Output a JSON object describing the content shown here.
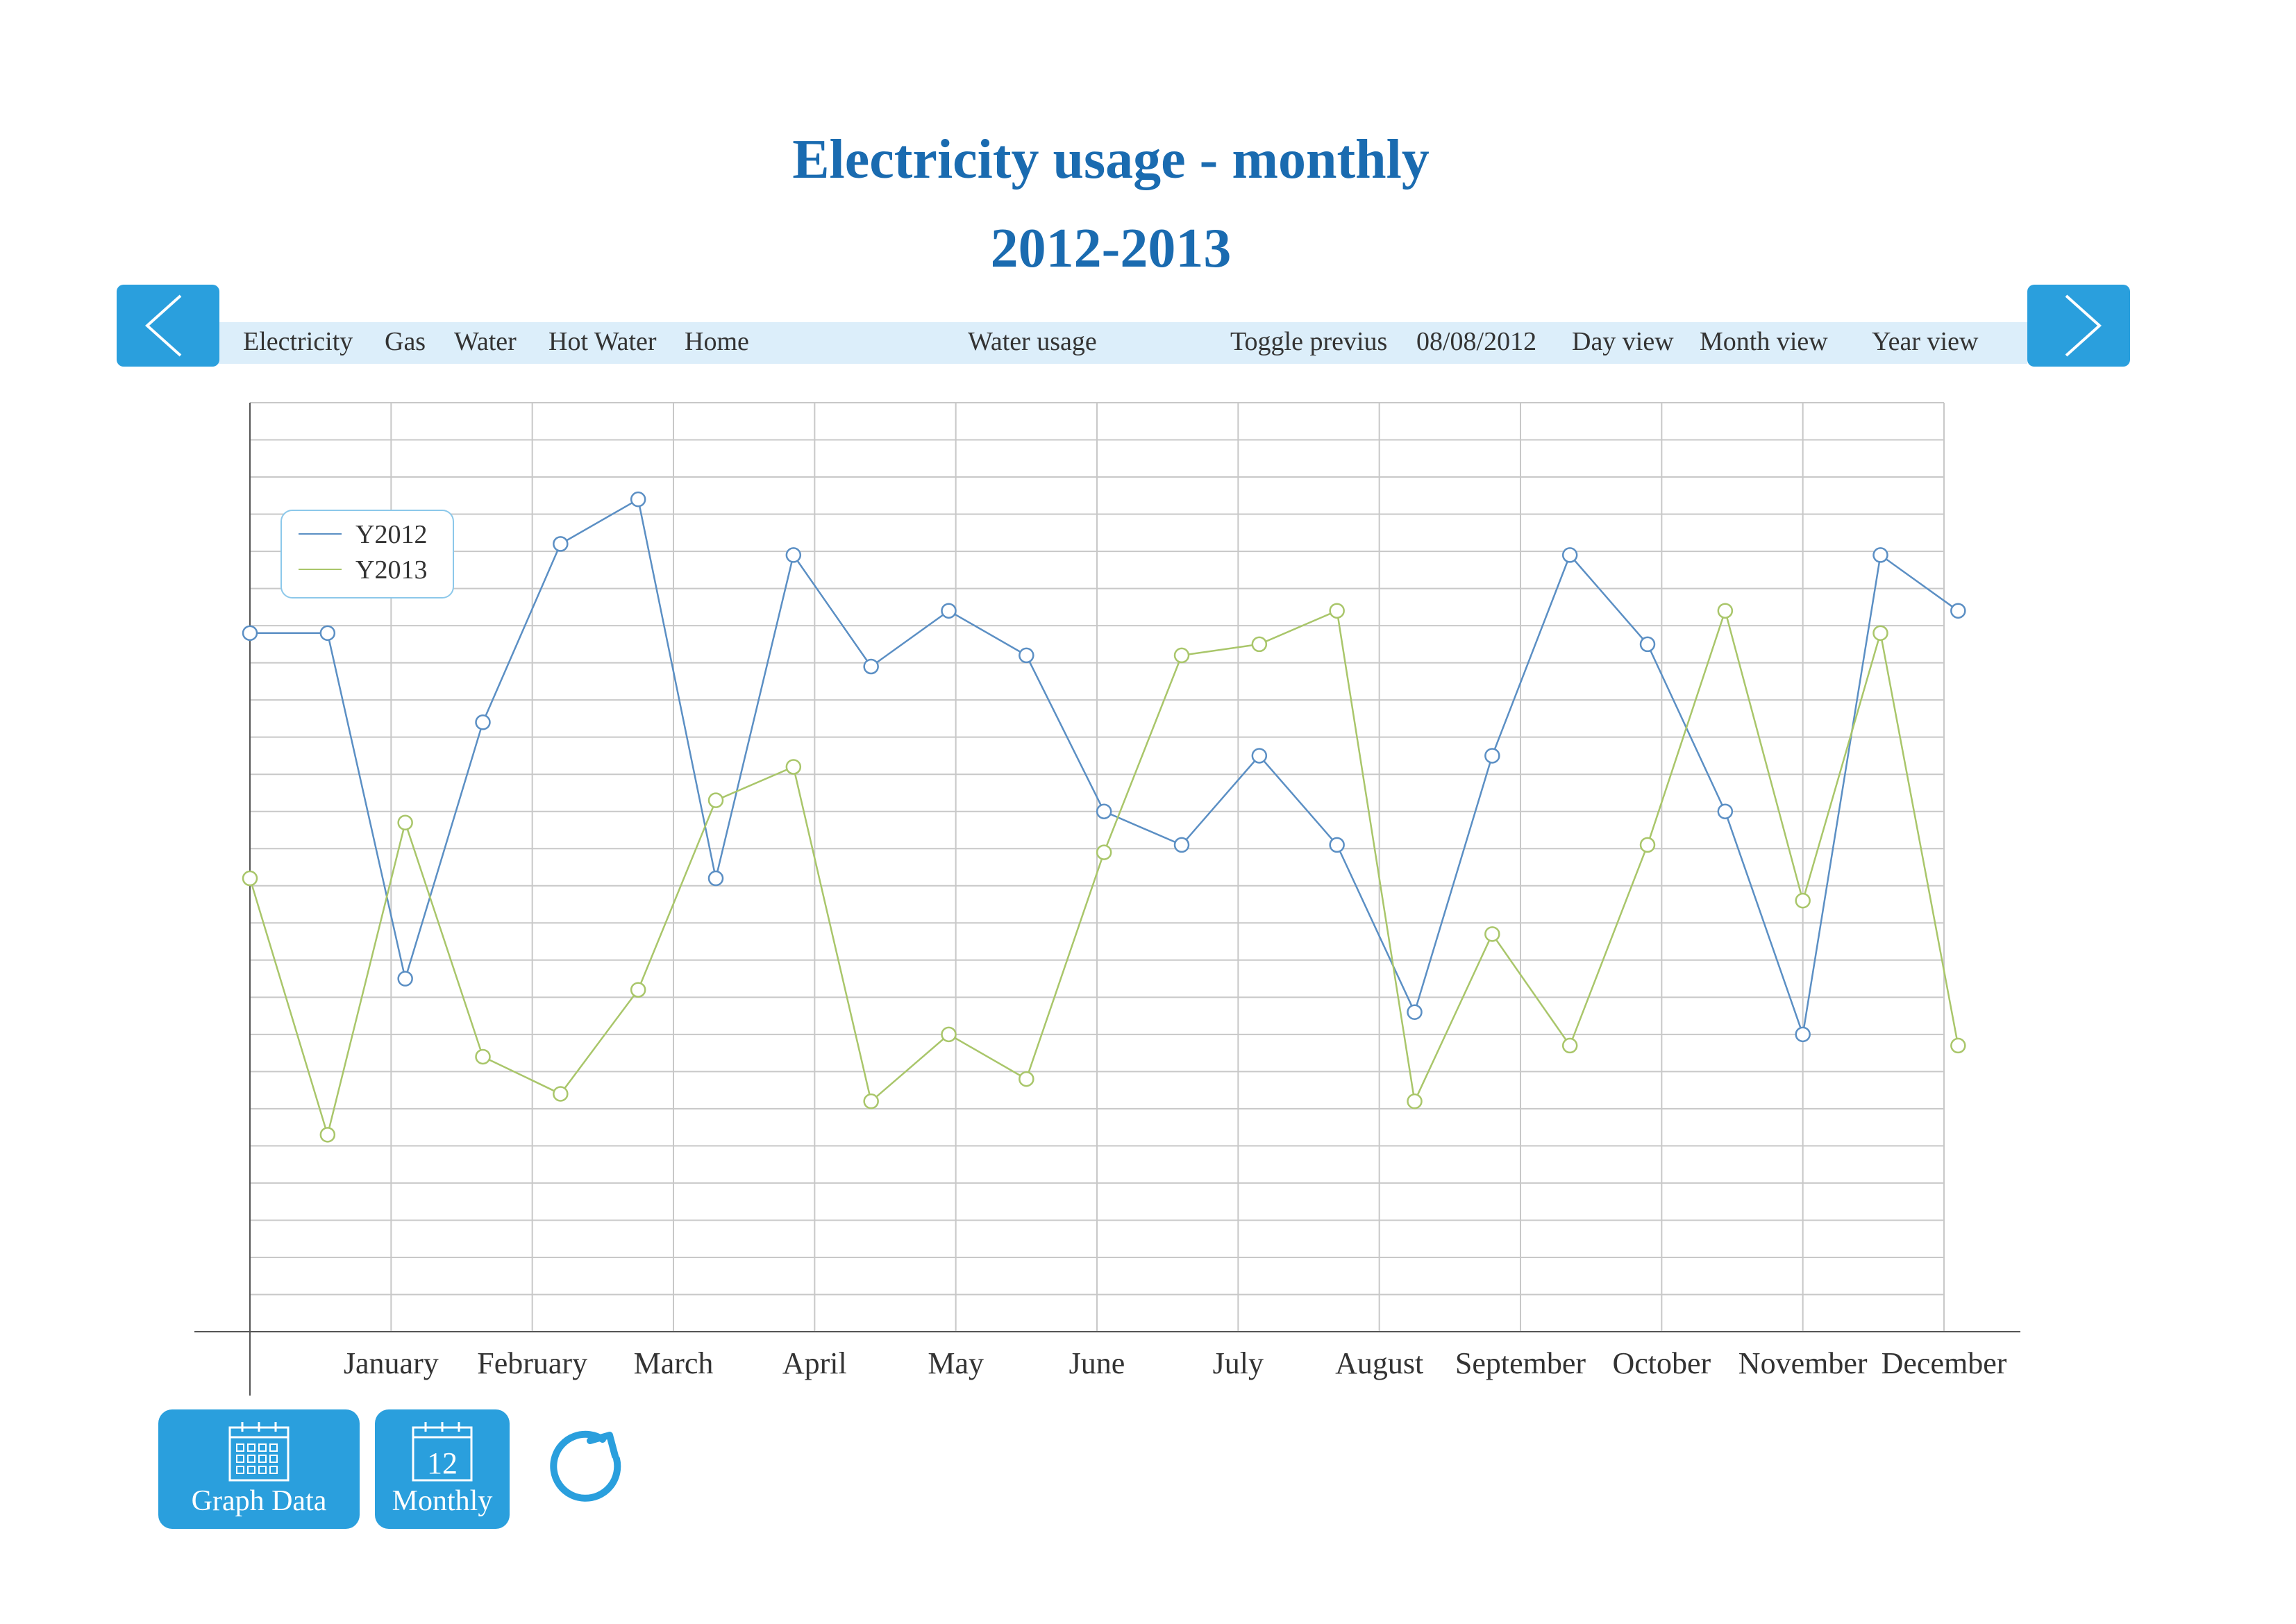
{
  "header": {
    "title": "Electricity usage - monthly",
    "subtitle": "2012-2013"
  },
  "nav": {
    "items": {
      "electricity": "Electricity",
      "gas": "Gas",
      "water": "Water",
      "hot_water": "Hot Water",
      "home": "Home",
      "water_usage": "Water usage",
      "toggle": "Toggle previus",
      "date": "08/08/2012",
      "day_view": "Day view",
      "month_view": "Month view",
      "year_view": "Year view"
    },
    "prev_icon": "chevron-left-icon",
    "next_icon": "chevron-right-icon"
  },
  "footer": {
    "graph_data_label": "Graph  Data",
    "graph_data_icon": "calendar-grid-icon",
    "monthly_label": "Monthly",
    "monthly_icon": "calendar-icon",
    "monthly_icon_number": "12",
    "refresh_icon": "refresh-icon"
  },
  "colors": {
    "accent": "#2a9fdd",
    "title": "#1a6bb0",
    "nav_bar": "#dceefa",
    "series_2012": "#5b8fc4",
    "series_2013": "#a9c66a",
    "grid": "#c8c8c8"
  },
  "chart_data": {
    "type": "line",
    "title": "Electricity usage - monthly",
    "subtitle": "2012-2013",
    "xlabel": "",
    "ylabel": "",
    "categories": [
      "January",
      "February",
      "March",
      "April",
      "May",
      "June",
      "July",
      "August",
      "September",
      "October",
      "November",
      "December"
    ],
    "x": [
      0,
      0.55,
      1.1,
      1.65,
      2.2,
      2.75,
      3.3,
      3.85,
      4.4,
      4.95,
      5.5,
      6.05,
      6.6,
      7.15,
      7.7,
      8.25,
      8.8,
      9.35,
      9.9,
      10.45,
      11,
      11.55,
      12.1
    ],
    "ylim": [
      0,
      25
    ],
    "grid": true,
    "legend_position": "top-left",
    "series": [
      {
        "name": "Y2012",
        "color": "#5b8fc4",
        "values": [
          18.8,
          18.8,
          9.5,
          16.4,
          21.2,
          22.4,
          12.2,
          20.9,
          17.9,
          19.4,
          18.2,
          14.0,
          13.1,
          15.5,
          13.1,
          8.6,
          15.5,
          20.9,
          18.5,
          14.0,
          8.0,
          20.9,
          19.4
        ]
      },
      {
        "name": "Y2013",
        "color": "#a9c66a",
        "values": [
          12.2,
          5.3,
          13.7,
          7.4,
          6.4,
          9.2,
          14.3,
          15.2,
          6.2,
          8.0,
          6.8,
          12.9,
          18.2,
          18.5,
          19.4,
          6.2,
          10.7,
          7.7,
          13.1,
          19.4,
          11.6,
          18.8,
          7.7
        ]
      }
    ]
  }
}
